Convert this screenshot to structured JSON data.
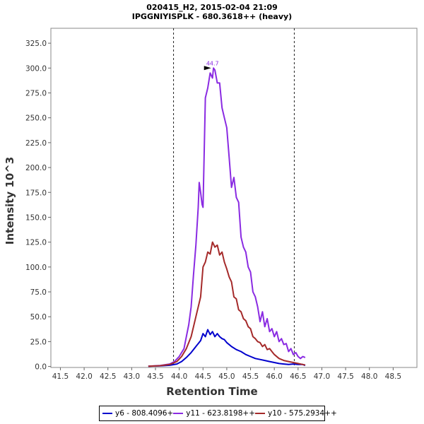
{
  "chart_data": {
    "type": "line",
    "title": "020415_H2, 2015-02-04 21:09",
    "subtitle": "IPGGNIYISPLK - 680.3618++ (heavy)",
    "xlabel": "Retention Time",
    "ylabel": "Intensity 10^3",
    "xlim": [
      41.3,
      49.0
    ],
    "ylim": [
      -1,
      340
    ],
    "x_ticks": [
      "41.5",
      "42.0",
      "42.5",
      "43.0",
      "43.5",
      "44.0",
      "44.5",
      "45.0",
      "45.5",
      "46.0",
      "46.5",
      "47.0",
      "47.5",
      "48.0",
      "48.5"
    ],
    "y_ticks": [
      "0.0",
      "25.0",
      "50.0",
      "75.0",
      "100.0",
      "125.0",
      "150.0",
      "175.0",
      "200.0",
      "225.0",
      "250.0",
      "275.0",
      "300.0",
      "325.0"
    ],
    "grid": false,
    "legend_position": "bottom",
    "boundary_lines": [
      43.88,
      46.42
    ],
    "peak_annotation": {
      "label": "44.7",
      "x": 44.7,
      "y": 300,
      "color": "#8a2be2"
    },
    "series": [
      {
        "name": "y6 - 808.4096+",
        "color": "#0000cd",
        "x": [
          43.35,
          43.6,
          43.8,
          43.95,
          44.05,
          44.15,
          44.25,
          44.35,
          44.45,
          44.5,
          44.55,
          44.6,
          44.65,
          44.7,
          44.75,
          44.8,
          44.85,
          44.9,
          44.95,
          45.0,
          45.1,
          45.2,
          45.3,
          45.4,
          45.5,
          45.6,
          45.7,
          45.8,
          45.9,
          46.0,
          46.1,
          46.2,
          46.3,
          46.4,
          46.5,
          46.6,
          46.65
        ],
        "values": [
          0.3,
          0.6,
          1.2,
          2.5,
          5,
          9,
          14,
          20,
          26,
          33,
          30,
          37,
          32,
          35,
          30,
          33,
          30,
          28,
          27,
          24,
          20,
          17,
          15,
          12,
          10,
          8,
          7,
          6,
          5,
          4,
          3,
          2.5,
          2,
          2.5,
          2,
          2,
          1
        ]
      },
      {
        "name": "y11 - 623.8198++",
        "color": "#8a2be2",
        "x": [
          43.35,
          43.6,
          43.8,
          43.9,
          44.0,
          44.1,
          44.15,
          44.2,
          44.25,
          44.3,
          44.35,
          44.4,
          44.42,
          44.45,
          44.48,
          44.5,
          44.55,
          44.6,
          44.65,
          44.7,
          44.72,
          44.75,
          44.8,
          44.85,
          44.9,
          44.95,
          45.0,
          45.05,
          45.1,
          45.15,
          45.2,
          45.25,
          45.3,
          45.35,
          45.4,
          45.45,
          45.5,
          45.55,
          45.6,
          45.65,
          45.7,
          45.75,
          45.8,
          45.85,
          45.9,
          45.95,
          46.0,
          46.05,
          46.1,
          46.15,
          46.2,
          46.25,
          46.3,
          46.35,
          46.4,
          46.45,
          46.5,
          46.55,
          46.6,
          46.65
        ],
        "values": [
          0.3,
          1,
          2.5,
          5,
          10,
          18,
          30,
          42,
          60,
          92,
          122,
          160,
          185,
          175,
          163,
          160,
          270,
          280,
          295,
          290,
          300,
          298,
          285,
          285,
          260,
          250,
          240,
          210,
          180,
          190,
          170,
          165,
          130,
          120,
          115,
          100,
          95,
          75,
          70,
          60,
          45,
          55,
          40,
          48,
          35,
          38,
          30,
          35,
          25,
          28,
          22,
          23,
          15,
          18,
          12,
          14,
          10,
          8,
          10,
          9
        ]
      },
      {
        "name": "y10 - 575.2934++",
        "color": "#a52a2a",
        "x": [
          43.35,
          43.6,
          43.8,
          43.95,
          44.05,
          44.15,
          44.25,
          44.35,
          44.45,
          44.5,
          44.55,
          44.6,
          44.65,
          44.7,
          44.75,
          44.8,
          44.85,
          44.9,
          44.95,
          45.0,
          45.05,
          45.1,
          45.15,
          45.2,
          45.25,
          45.3,
          45.35,
          45.4,
          45.45,
          45.5,
          45.55,
          45.6,
          45.65,
          45.7,
          45.75,
          45.8,
          45.85,
          45.9,
          45.95,
          46.0,
          46.1,
          46.2,
          46.3,
          46.4,
          46.5,
          46.6,
          46.65
        ],
        "values": [
          0.3,
          0.8,
          2,
          5,
          10,
          18,
          30,
          50,
          70,
          100,
          105,
          115,
          113,
          125,
          120,
          122,
          112,
          115,
          105,
          98,
          90,
          85,
          70,
          68,
          57,
          55,
          48,
          46,
          40,
          38,
          30,
          28,
          25,
          24,
          20,
          22,
          17,
          18,
          15,
          12,
          8,
          6,
          5,
          4,
          3,
          2,
          1.5
        ]
      }
    ]
  }
}
